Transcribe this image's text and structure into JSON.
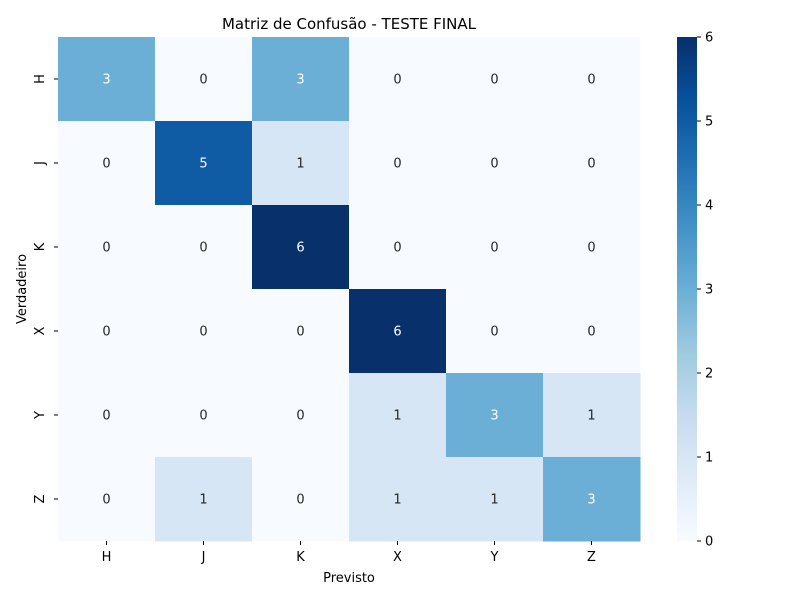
{
  "chart_data": {
    "type": "heatmap",
    "title": "Matriz de Confusão - TESTE FINAL",
    "xlabel": "Previsto",
    "ylabel": "Verdadeiro",
    "x_categories": [
      "H",
      "J",
      "K",
      "X",
      "Y",
      "Z"
    ],
    "y_categories": [
      "H",
      "J",
      "K",
      "X",
      "Y",
      "Z"
    ],
    "values": [
      [
        3,
        0,
        3,
        0,
        0,
        0
      ],
      [
        0,
        5,
        1,
        0,
        0,
        0
      ],
      [
        0,
        0,
        6,
        0,
        0,
        0
      ],
      [
        0,
        0,
        0,
        6,
        0,
        0
      ],
      [
        0,
        0,
        0,
        1,
        3,
        1
      ],
      [
        0,
        1,
        0,
        1,
        1,
        3
      ]
    ],
    "vmin": 0,
    "vmax": 6,
    "colormap": "Blues",
    "colorbar_ticks": [
      0,
      1,
      2,
      3,
      4,
      5,
      6
    ],
    "colors": {
      "low": "#f7fbff",
      "high": "#08306b"
    },
    "annotations": true
  }
}
